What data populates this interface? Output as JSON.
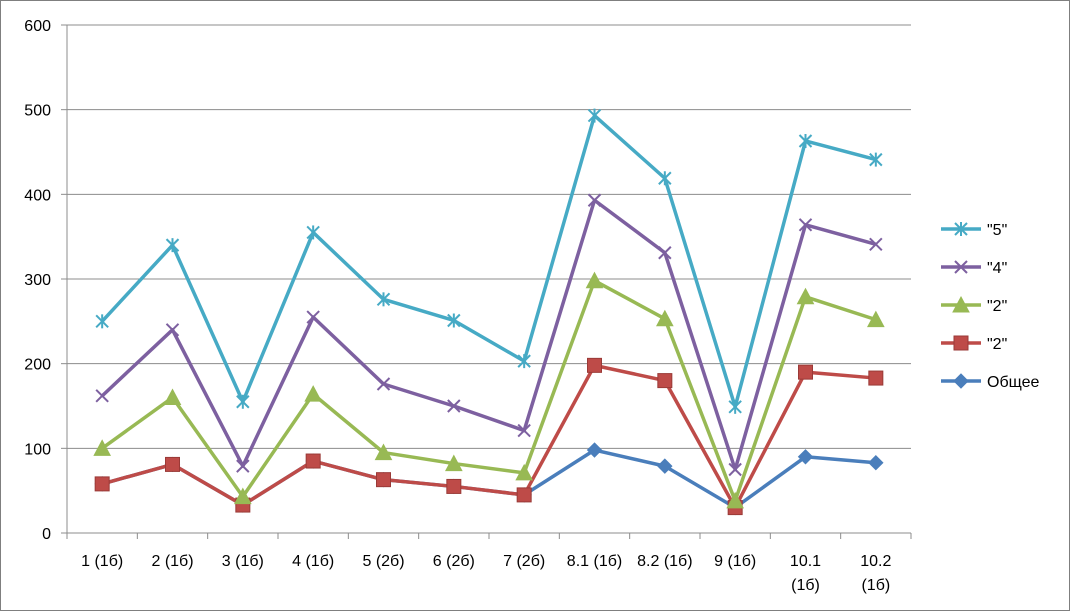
{
  "chart_data": {
    "type": "line",
    "categories": [
      [
        "1 (1б)"
      ],
      [
        "2 (1б)"
      ],
      [
        "3 (1б)"
      ],
      [
        "4 (1б)"
      ],
      [
        "5 (2б)"
      ],
      [
        "6 (2б)"
      ],
      [
        "7 (2б)"
      ],
      [
        "8.1 (1б)"
      ],
      [
        "8.2 (1б)"
      ],
      [
        "9 (1б)"
      ],
      [
        "10.1",
        "(1б)"
      ],
      [
        "10.2",
        "(1б)"
      ]
    ],
    "ylim": [
      0,
      600
    ],
    "yticks": [
      "0",
      "100",
      "200",
      "300",
      "400",
      "500",
      "600"
    ],
    "grid": true,
    "legend_position": "right",
    "series": [
      {
        "name": "Общее",
        "color": "#4a7ebb",
        "marker": "diamond",
        "values": [
          58,
          81,
          33,
          85,
          63,
          55,
          45,
          98,
          79,
          30,
          90,
          83
        ]
      },
      {
        "name": "\"2\"",
        "color": "#be4b48",
        "marker": "square",
        "values": [
          58,
          81,
          33,
          85,
          63,
          55,
          45,
          198,
          180,
          30,
          190,
          183
        ]
      },
      {
        "name": "\"2\"",
        "color": "#98b954",
        "marker": "triangle",
        "values": [
          100,
          160,
          43,
          164,
          95,
          82,
          71,
          298,
          253,
          38,
          279,
          252
        ]
      },
      {
        "name": "\"4\"",
        "color": "#7d60a0",
        "marker": "x",
        "values": [
          162,
          240,
          79,
          255,
          176,
          150,
          121,
          393,
          331,
          75,
          364,
          341
        ]
      },
      {
        "name": "\"5\"",
        "color": "#46aac5",
        "marker": "star",
        "values": [
          250,
          340,
          155,
          355,
          276,
          251,
          203,
          493,
          419,
          149,
          463,
          441
        ]
      }
    ]
  }
}
